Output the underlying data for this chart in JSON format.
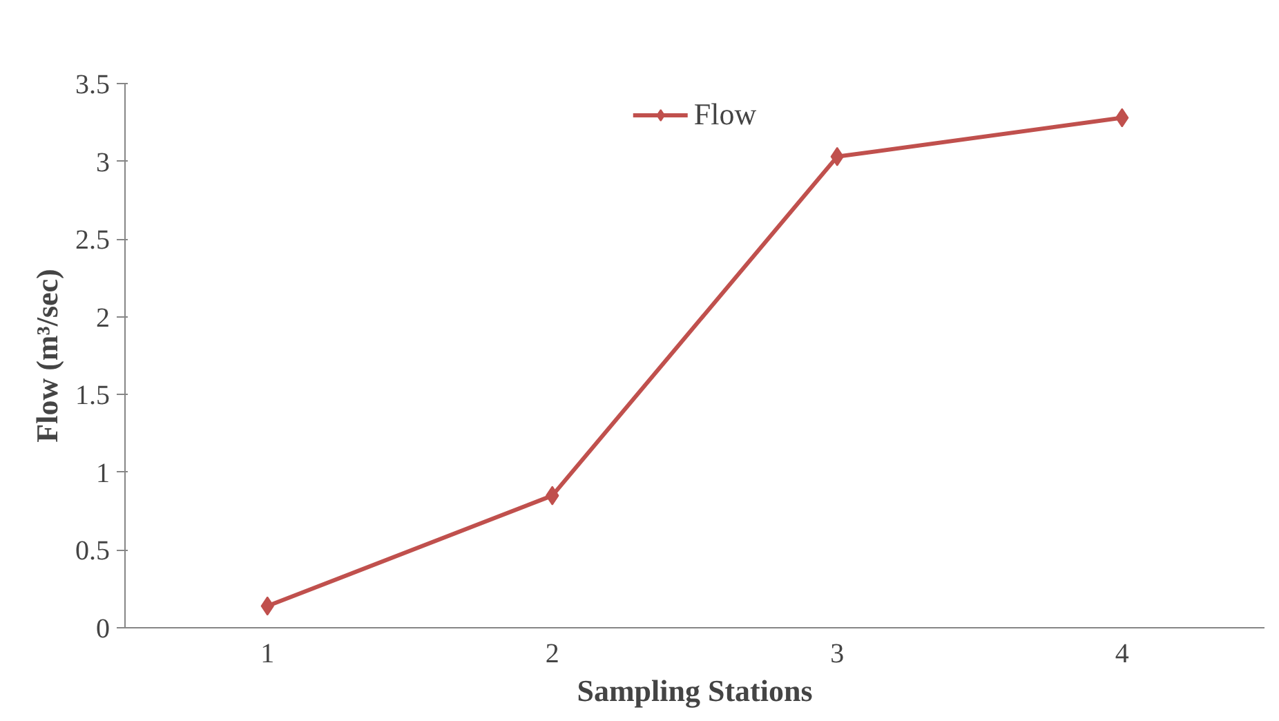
{
  "chart_data": {
    "type": "line",
    "xlabel": "Sampling Stations",
    "ylabel": "Flow (m³/sec)",
    "categories": [
      "1",
      "2",
      "3",
      "4"
    ],
    "series": [
      {
        "name": "Flow",
        "color": "#c0504d",
        "values": [
          0.14,
          0.85,
          3.03,
          3.28
        ]
      }
    ],
    "ylim": [
      0,
      3.5
    ],
    "yticks": [
      0,
      0.5,
      1,
      1.5,
      2,
      2.5,
      3,
      3.5
    ],
    "grid": false,
    "legend": "top",
    "marker": "diamond",
    "line_style": "solid"
  }
}
